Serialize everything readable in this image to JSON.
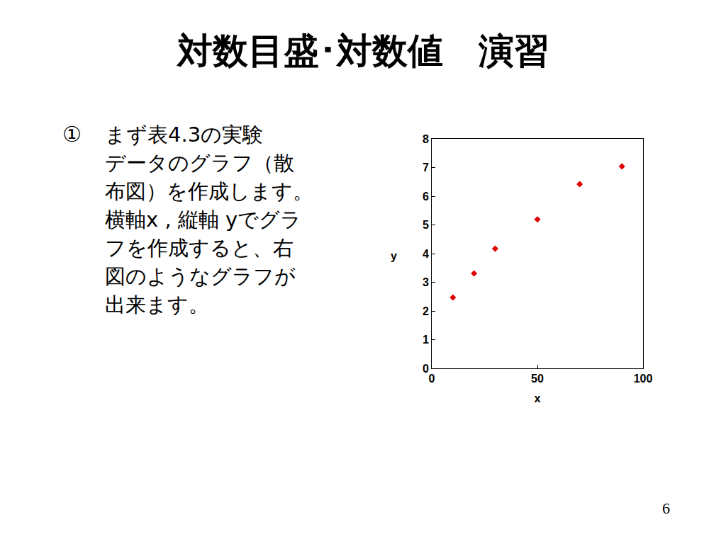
{
  "slide": {
    "title": "対数目盛･対数値　演習",
    "bullet": "①",
    "lines": [
      "まず表4.3の実験",
      "データのグラフ（散",
      "布図）を作成します。",
      "横軸x , 縦軸 yでグラ",
      "フを作成すると、右",
      "図のようなグラフが",
      "出来ます。"
    ],
    "page": "6"
  },
  "chart_data": {
    "type": "scatter",
    "x_label": "x",
    "y_label": "y",
    "x": [
      10,
      20,
      30,
      50,
      70,
      90
    ],
    "values": [
      2.47,
      3.31,
      4.17,
      5.19,
      6.42,
      7.04
    ],
    "color": "#e00000",
    "marker": "diamond",
    "xlim": [
      0,
      100
    ],
    "xticks": [
      0,
      50,
      100
    ],
    "ylim": [
      0,
      8
    ],
    "yticks": [
      0,
      1,
      2,
      3,
      4,
      5,
      6,
      7,
      8
    ],
    "grid": false
  }
}
